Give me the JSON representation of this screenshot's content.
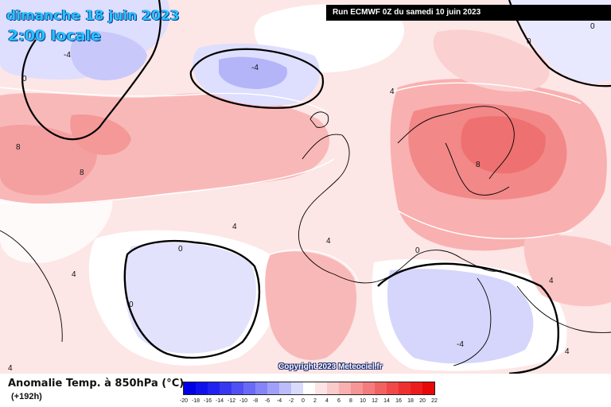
{
  "title": {
    "date": "dimanche 18 juin 2023",
    "time": "2:00 locale"
  },
  "run_banner": "Run ECMWF 0Z du samedi 10 juin 2023",
  "copyright": "Copyright 2023 Meteociel.fr",
  "legend": {
    "title": "Anomalie Temp. à 850hPa (°C)",
    "forecast_hour": "(+192h)",
    "scale": [
      {
        "label": "-20",
        "color": "#0000e6"
      },
      {
        "label": "-18",
        "color": "#1010ec"
      },
      {
        "label": "-16",
        "color": "#2222f0"
      },
      {
        "label": "-14",
        "color": "#3838f2"
      },
      {
        "label": "-12",
        "color": "#5050f4"
      },
      {
        "label": "-10",
        "color": "#6a6af6"
      },
      {
        "label": "-8",
        "color": "#8585f8"
      },
      {
        "label": "-6",
        "color": "#a0a0fa"
      },
      {
        "label": "-4",
        "color": "#bcbcfc"
      },
      {
        "label": "-2",
        "color": "#dadafd"
      },
      {
        "label": "0",
        "color": "#ffffff"
      },
      {
        "label": "2",
        "color": "#fde4e4"
      },
      {
        "label": "4",
        "color": "#fbcaca"
      },
      {
        "label": "6",
        "color": "#f9b0b0"
      },
      {
        "label": "8",
        "color": "#f79696"
      },
      {
        "label": "10",
        "color": "#f57c7c"
      },
      {
        "label": "12",
        "color": "#f36262"
      },
      {
        "label": "14",
        "color": "#f14848"
      },
      {
        "label": "16",
        "color": "#ef3030"
      },
      {
        "label": "18",
        "color": "#ed1c1c"
      },
      {
        "label": "20",
        "color": "#e80808"
      },
      {
        "label": "22",
        "color": ""
      }
    ]
  },
  "isoline_labels": [
    "4",
    "0",
    "-4",
    "8",
    "4",
    "0",
    "-4",
    "4",
    "8",
    "0",
    "-4"
  ],
  "colors": {
    "warm_light": "#fbd2d2",
    "warm_mid": "#f7a8a8",
    "warm_strong": "#f08484",
    "cool_light": "#dedeff",
    "cool_mid": "#b8b8fa",
    "coastline": "#000000",
    "contour": "#ffffff"
  }
}
